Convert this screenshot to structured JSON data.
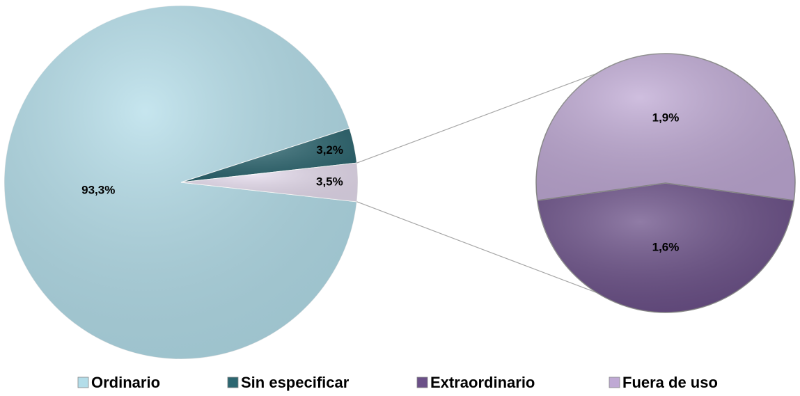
{
  "chart_data": {
    "type": "pie",
    "primary": {
      "categories": [
        "Ordinario",
        "Sin especificar"
      ],
      "values": [
        93.3,
        3.2
      ],
      "value_labels": [
        "93,3%",
        "3,2%"
      ],
      "colors": [
        "#b3dde9",
        "#2c6670"
      ]
    },
    "other": {
      "value": 3.5,
      "value_label": "3,5%",
      "color": "#e6dcee"
    },
    "secondary": {
      "categories": [
        "Extraordinario",
        "Fuera de uso"
      ],
      "values": [
        1.6,
        1.9
      ],
      "value_labels": [
        "1,6%",
        "1,9%"
      ],
      "colors": [
        "#6b5088",
        "#bfa9d4"
      ]
    }
  }
}
